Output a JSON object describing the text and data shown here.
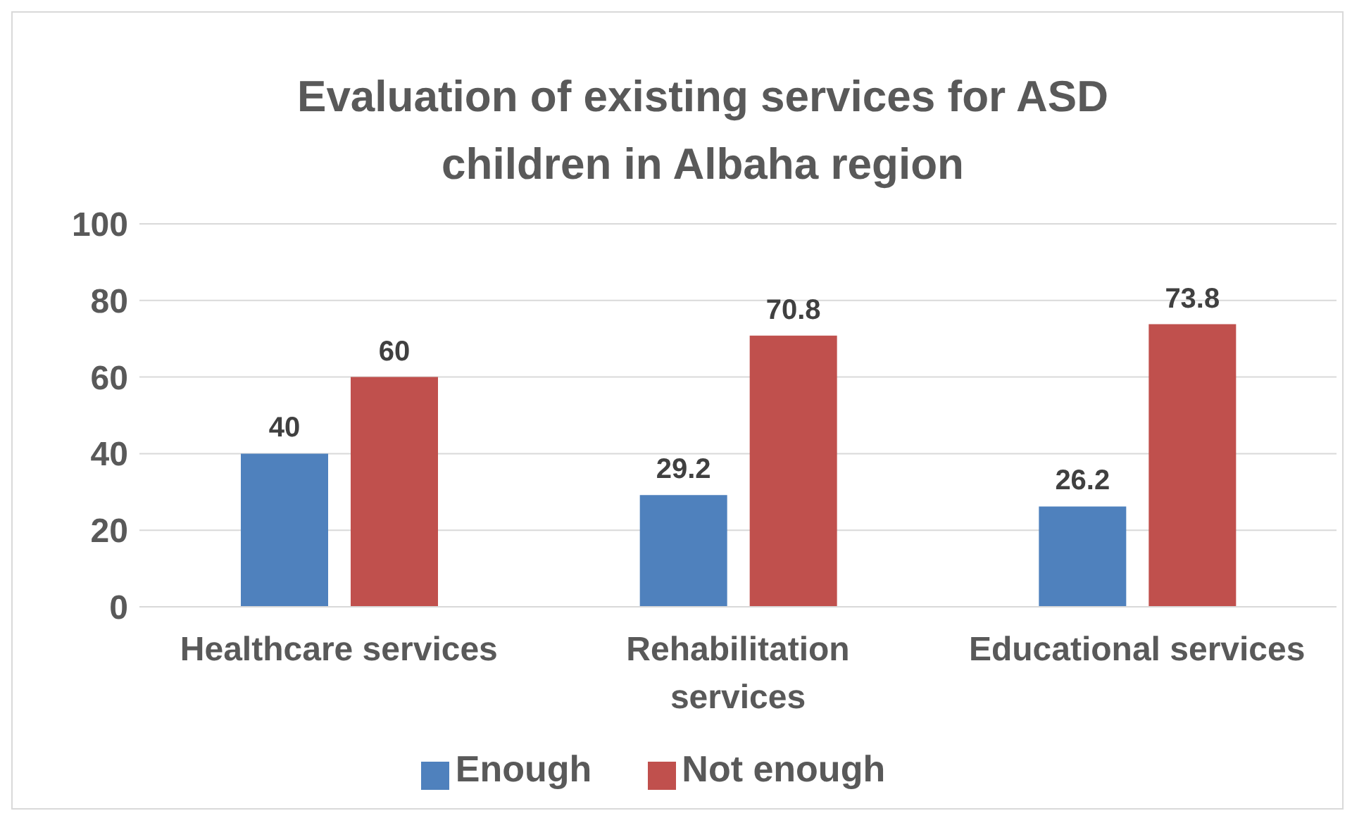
{
  "chart_data": {
    "type": "bar",
    "title": "Evaluation of existing services for ASD children in Albaha region",
    "categories": [
      "Healthcare services",
      "Rehabilitation services",
      "Educational services"
    ],
    "series": [
      {
        "name": "Enough",
        "color": "#4f81bd",
        "values": [
          40,
          29.2,
          26.2
        ]
      },
      {
        "name": "Not enough",
        "color": "#c0504d",
        "values": [
          60,
          70.8,
          73.8
        ]
      }
    ],
    "ylim": [
      0,
      100
    ],
    "yticks": [
      0,
      20,
      40,
      60,
      80,
      100
    ],
    "grid": "y",
    "legend": "bottom",
    "data_labels": true
  }
}
